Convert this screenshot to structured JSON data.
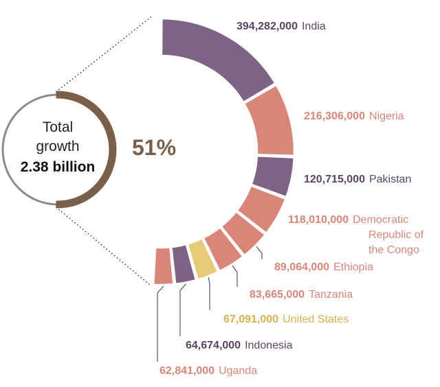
{
  "chart_data": {
    "type": "pie",
    "total": {
      "line1": "Total",
      "line2": "growth",
      "line3": "2.38 billion",
      "share_label": "51%",
      "share_fraction": 0.51
    },
    "categories": [
      "India",
      "Nigeria",
      "Pakistan",
      "Democratic Republic of the Congo",
      "Ethiopia",
      "Tanzania",
      "United States",
      "Indonesia",
      "Uganda"
    ],
    "values": [
      394282000,
      216306000,
      120715000,
      118010000,
      89064000,
      83665000,
      67091000,
      64674000,
      62841000
    ],
    "value_labels": [
      "394,282,000",
      "216,306,000",
      "120,715,000",
      "118,010,000",
      "89,064,000",
      "83,665,000",
      "67,091,000",
      "64,674,000",
      "62,841,000"
    ],
    "name_lines": [
      [
        "India"
      ],
      [
        "Nigeria"
      ],
      [
        "Pakistan"
      ],
      [
        "Democratic",
        "Republic of",
        "the Congo"
      ],
      [
        "Ethiopia"
      ],
      [
        "Tanzania"
      ],
      [
        "United States"
      ],
      [
        "Indonesia"
      ],
      [
        "Uganda"
      ]
    ],
    "colors": [
      "#7d6484",
      "#d98578",
      "#7d6484",
      "#d98578",
      "#d98578",
      "#d98578",
      "#e9cb77",
      "#7d6484",
      "#d98578"
    ],
    "label_colors": [
      "#5a4463",
      "#d98578",
      "#5a4463",
      "#d98578",
      "#d98578",
      "#d98578",
      "#d4b24a",
      "#5a4463",
      "#d98578"
    ],
    "total_color": "#7a5f4a",
    "ring_color": "#8a8a8a"
  }
}
